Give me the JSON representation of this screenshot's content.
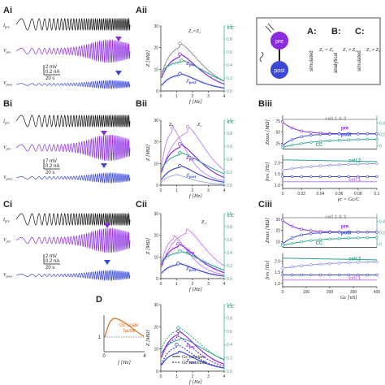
{
  "colors": {
    "pre": "#8a2be2",
    "pre_light": "#c07ff0",
    "post": "#3b48d6",
    "post_light": "#8a93ee",
    "cc": "#2ca58d",
    "gray": "#888888",
    "orange": "#d46a1a",
    "black": "#111111"
  },
  "panels": {
    "Ai": "Ai",
    "Aii": "Aii",
    "Bi": "Bi",
    "Bii": "Bii",
    "Biii": "Biii",
    "Ci": "Ci",
    "Cii": "Cii",
    "Ciii": "Ciii",
    "D": "D"
  },
  "traces": {
    "ipre": "I",
    "ipre_sub": "pre",
    "vpre": "V",
    "vpre_sub": "pre",
    "vpost": "V",
    "vpost_sub": "post",
    "A": {
      "scale_v": "2 mV",
      "scale_i": "0.2 nA",
      "scale_t": "20 s"
    },
    "B": {
      "scale_v": "7 mV",
      "scale_i": "0.2 nA",
      "scale_t": "20 s"
    },
    "C": {
      "scale_v": "2 mV",
      "scale_i": "0.2 nA",
      "scale_t": "20 s"
    }
  },
  "zplots": {
    "ylabel": "Z [MΩ]",
    "cc_label": "CC",
    "xlabel": "f [Hz]",
    "x_ticks": [
      "0",
      "1",
      "2",
      "3",
      "4"
    ],
    "z_ticks": [
      "0",
      "10",
      "20",
      "30"
    ],
    "cc_ticks": [
      "0.0",
      "0.2",
      "0.4",
      "0.6",
      "0.8",
      "1.0"
    ],
    "zpre": "Z",
    "zpre_sub": "pre",
    "zpost": "Z",
    "zpost_sub": "post",
    "A_note": "Z₁=Z₂",
    "B_z1": "Z₁",
    "B_z2": "Z₂",
    "C_z2": "Z₂"
  },
  "legend": {
    "pre": "pre",
    "post": "post",
    "A_label": "A:",
    "B_label": "B:",
    "C_label": "C:",
    "A_mode": "simulated",
    "B_mode": "analytical",
    "C_mode": "simulated",
    "A_rel": "Z₁ = Z₂",
    "B_rel": "Z₁ ≠ Z₂",
    "C_rel": "Z₁ ≠ Z₂"
  },
  "biii": {
    "ylabel_top": "Zmax [MΩ]",
    "ylabel_bot": "fres [Hz]",
    "xlabel": "γc = Gc/C",
    "x_ticks": [
      "0",
      "0.02",
      "0.04",
      "0.06",
      "0.08",
      "0.1"
    ],
    "z_ticks": [
      "25",
      "50",
      "75"
    ],
    "f_ticks": [
      "1.0",
      "1.5",
      "2.0"
    ],
    "cc_ticks": [
      "0",
      "0.2",
      "0.4"
    ],
    "cell12": "cell 1 & 2",
    "pre": "pre",
    "post": "post",
    "cc": "CC",
    "cell2": "cell 2",
    "cell1": "cell 1"
  },
  "ciii": {
    "ylabel_top": "Zmax [MΩ]",
    "ylabel_bot": "fres [Hz]",
    "xlabel": "Gc [nS]",
    "x_ticks": [
      "0",
      "100",
      "200",
      "300",
      "400"
    ],
    "z_ticks": [
      "10",
      "20",
      "30"
    ],
    "f_ticks": [
      "1.0",
      "1.5",
      "2.0"
    ],
    "cc_ticks": [
      "0",
      "0.2",
      "0.4"
    ],
    "cell12": "cell 1 & 2",
    "pre": "pre",
    "post": "post",
    "cc": "CC",
    "cell2": "cell 2",
    "cell1": "cell 1"
  },
  "dpanel": {
    "scale_label_1": "Gc scale",
    "scale_label_2": "factor",
    "y_tick_1": "1",
    "x_ticks": [
      "0",
      "4"
    ],
    "xlabel": "f [Hz]",
    "legend_solid": "Gc constant",
    "legend_dashed": "Gc resonant"
  }
}
